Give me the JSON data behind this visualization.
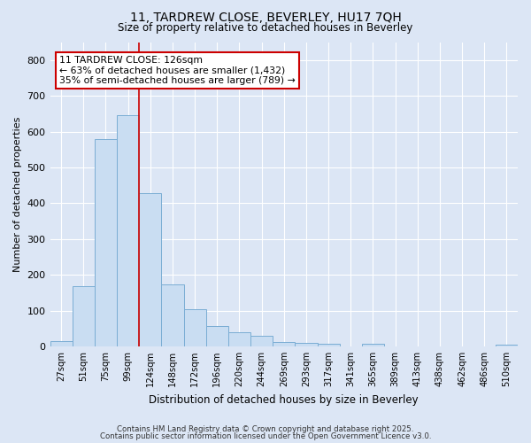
{
  "title_line1": "11, TARDREW CLOSE, BEVERLEY, HU17 7QH",
  "title_line2": "Size of property relative to detached houses in Beverley",
  "xlabel": "Distribution of detached houses by size in Beverley",
  "ylabel": "Number of detached properties",
  "bar_labels": [
    "27sqm",
    "51sqm",
    "75sqm",
    "99sqm",
    "124sqm",
    "148sqm",
    "172sqm",
    "196sqm",
    "220sqm",
    "244sqm",
    "269sqm",
    "293sqm",
    "317sqm",
    "341sqm",
    "365sqm",
    "389sqm",
    "413sqm",
    "438sqm",
    "462sqm",
    "486sqm",
    "510sqm"
  ],
  "bar_values": [
    15,
    168,
    580,
    645,
    428,
    173,
    103,
    57,
    40,
    30,
    13,
    10,
    8,
    0,
    7,
    0,
    0,
    0,
    0,
    0,
    6
  ],
  "bar_color": "#c9ddf2",
  "bar_edge_color": "#7aadd4",
  "vline_x_idx": 4,
  "vline_color": "#cc0000",
  "annotation_text": "11 TARDREW CLOSE: 126sqm\n← 63% of detached houses are smaller (1,432)\n35% of semi-detached houses are larger (789) →",
  "annotation_box_color": "white",
  "annotation_box_edge": "#cc0000",
  "ylim": [
    0,
    850
  ],
  "yticks": [
    0,
    100,
    200,
    300,
    400,
    500,
    600,
    700,
    800
  ],
  "footer_line1": "Contains HM Land Registry data © Crown copyright and database right 2025.",
  "footer_line2": "Contains public sector information licensed under the Open Government Licence v3.0.",
  "fig_bg_color": "#dce6f5",
  "plot_bg_color": "#dce6f5",
  "grid_color": "white",
  "title_color": "#000000",
  "axis_label_color": "#000000"
}
